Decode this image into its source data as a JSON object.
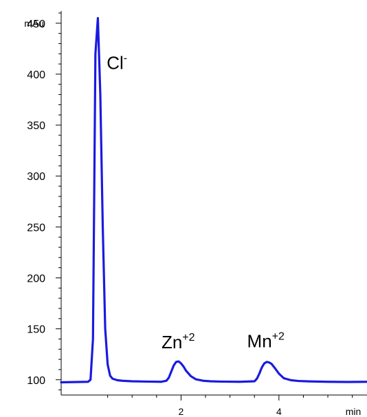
{
  "chart_data": {
    "type": "line",
    "xlabel": "min",
    "ylabel": "mAu",
    "xlim": [
      -0.45,
      5.8
    ],
    "ylim": [
      85,
      462
    ],
    "x_ticks": [
      {
        "value": 2,
        "label": "2"
      },
      {
        "value": 4,
        "label": "4"
      }
    ],
    "x_minor_step": 0.5,
    "y_ticks": [
      {
        "value": 100,
        "label": "100"
      },
      {
        "value": 150,
        "label": "150"
      },
      {
        "value": 200,
        "label": "200"
      },
      {
        "value": 250,
        "label": "250"
      },
      {
        "value": 300,
        "label": "300"
      },
      {
        "value": 350,
        "label": "350"
      },
      {
        "value": 400,
        "label": "400"
      },
      {
        "value": 450,
        "label": "450"
      }
    ],
    "y_minor_step": 10,
    "grid": false,
    "series": [
      {
        "color": "#1a1ae0",
        "x": [
          -0.45,
          0.1,
          0.15,
          0.2,
          0.25,
          0.3,
          0.35,
          0.4,
          0.45,
          0.5,
          0.55,
          0.6,
          0.7,
          0.8,
          1.0,
          1.3,
          1.6,
          1.7,
          1.75,
          1.8,
          1.85,
          1.9,
          1.95,
          2.0,
          2.05,
          2.1,
          2.2,
          2.3,
          2.45,
          2.6,
          2.8,
          3.2,
          3.5,
          3.55,
          3.6,
          3.65,
          3.7,
          3.75,
          3.8,
          3.85,
          3.9,
          4.0,
          4.1,
          4.25,
          4.4,
          4.6,
          5.0,
          5.4,
          5.8
        ],
        "y": [
          97.5,
          98,
          100,
          140,
          420,
          455,
          380,
          250,
          150,
          115,
          104,
          101,
          99.5,
          99,
          98.5,
          98.2,
          98,
          99,
          102,
          108,
          114,
          117.5,
          118,
          116,
          113,
          109,
          103.5,
          100.5,
          99,
          98.5,
          98.2,
          98,
          98.5,
          101,
          106,
          112,
          116,
          117.5,
          117,
          115.5,
          112.5,
          106,
          101.5,
          99.5,
          98.8,
          98.4,
          98,
          97.8,
          98
        ]
      }
    ],
    "annotations": [
      {
        "text": "Cl",
        "sup": "-",
        "x": 0.48,
        "y": 405
      },
      {
        "text": "Zn",
        "sup": "+2",
        "x": 1.6,
        "y": 131
      },
      {
        "text": "Mn",
        "sup": "+2",
        "x": 3.35,
        "y": 132
      }
    ]
  }
}
